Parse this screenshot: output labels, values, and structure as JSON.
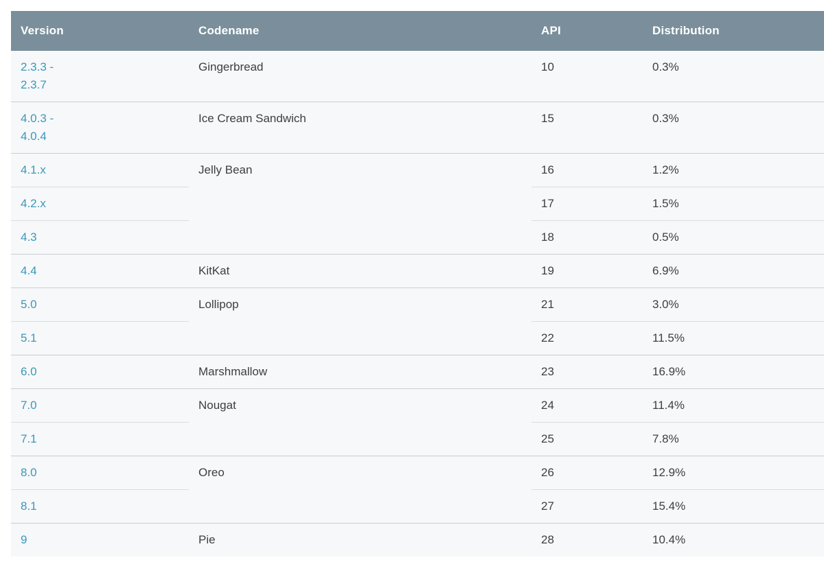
{
  "theme": {
    "page_bg": "#ffffff",
    "header_bg": "#7a8f9b",
    "header_text": "#ffffff",
    "header_edge": "#6d8793",
    "row_bg": "#f7f8f9",
    "text": "#3c4043",
    "link": "#3a98ba",
    "border_group": "#c9ced2",
    "border_inner": "#d9dcdf"
  },
  "table": {
    "name": "android-version-distribution-table",
    "columns": [
      {
        "key": "version",
        "label": "Version"
      },
      {
        "key": "codename",
        "label": "Codename"
      },
      {
        "key": "api",
        "label": "API"
      },
      {
        "key": "distribution",
        "label": "Distribution"
      }
    ],
    "groups": [
      {
        "codename": "Gingerbread",
        "rows": [
          {
            "version": "2.3.3 -\n2.3.7",
            "api": "10",
            "distribution": "0.3%"
          }
        ]
      },
      {
        "codename": "Ice Cream Sandwich",
        "rows": [
          {
            "version": "4.0.3 -\n4.0.4",
            "api": "15",
            "distribution": "0.3%"
          }
        ]
      },
      {
        "codename": "Jelly Bean",
        "rows": [
          {
            "version": "4.1.x",
            "api": "16",
            "distribution": "1.2%"
          },
          {
            "version": "4.2.x",
            "api": "17",
            "distribution": "1.5%"
          },
          {
            "version": "4.3",
            "api": "18",
            "distribution": "0.5%"
          }
        ]
      },
      {
        "codename": "KitKat",
        "rows": [
          {
            "version": "4.4",
            "api": "19",
            "distribution": "6.9%"
          }
        ]
      },
      {
        "codename": "Lollipop",
        "rows": [
          {
            "version": "5.0",
            "api": "21",
            "distribution": "3.0%"
          },
          {
            "version": "5.1",
            "api": "22",
            "distribution": "11.5%"
          }
        ]
      },
      {
        "codename": "Marshmallow",
        "rows": [
          {
            "version": "6.0",
            "api": "23",
            "distribution": "16.9%"
          }
        ]
      },
      {
        "codename": "Nougat",
        "rows": [
          {
            "version": "7.0",
            "api": "24",
            "distribution": "11.4%"
          },
          {
            "version": "7.1",
            "api": "25",
            "distribution": "7.8%"
          }
        ]
      },
      {
        "codename": "Oreo",
        "rows": [
          {
            "version": "8.0",
            "api": "26",
            "distribution": "12.9%"
          },
          {
            "version": "8.1",
            "api": "27",
            "distribution": "15.4%"
          }
        ]
      },
      {
        "codename": "Pie",
        "rows": [
          {
            "version": "9",
            "api": "28",
            "distribution": "10.4%"
          }
        ]
      }
    ]
  }
}
